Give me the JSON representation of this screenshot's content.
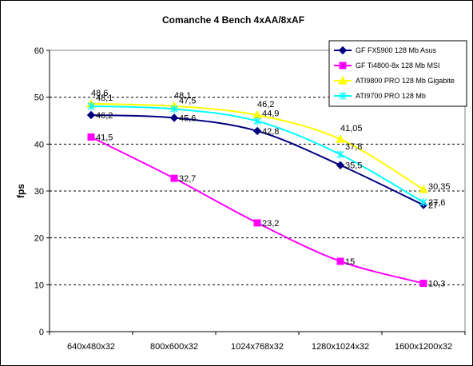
{
  "chart_data": {
    "type": "line",
    "title": "Comanche 4 Bench 4xAA/8xAF",
    "xlabel": "",
    "ylabel": "fps",
    "ylim": [
      0,
      60
    ],
    "yticks": [
      0,
      10,
      20,
      30,
      40,
      50,
      60
    ],
    "grid": "horizontal dashed",
    "legend": "top-right",
    "categories": [
      "640x480x32",
      "800x600x32",
      "1024x768x32",
      "1280x1024x32",
      "1600x1200x32"
    ],
    "series": [
      {
        "name": "GF FX5900 128 Mb Asus",
        "color": "#000080",
        "marker": "diamond",
        "values": [
          46.2,
          45.6,
          42.8,
          35.5,
          27
        ],
        "labels": [
          "46,2",
          "45,6",
          "42,8",
          "35,5",
          "27"
        ]
      },
      {
        "name": "GF Ti4800-8x 128 Mb MSI",
        "color": "#FF00FF",
        "marker": "square",
        "values": [
          41.5,
          32.7,
          23.2,
          15,
          10.3
        ],
        "labels": [
          "41,5",
          "32,7",
          "23,2",
          "15",
          "10,3"
        ]
      },
      {
        "name": "ATI9800 PRO 128 Mb Gigabite",
        "color": "#FFFF00",
        "marker": "triangle",
        "values": [
          48.6,
          48.1,
          46.2,
          41.05,
          30.35
        ],
        "labels": [
          "48,6",
          "48,1",
          "46,2",
          "41,05",
          "30,35"
        ]
      },
      {
        "name": "ATI9700 PRO 128 Mb",
        "color": "#00FFFF",
        "marker": "star",
        "values": [
          48.1,
          47.5,
          44.9,
          37.8,
          27.6
        ],
        "labels": [
          "48,1",
          "47,5",
          "44,9",
          "37,8",
          "27,6"
        ]
      }
    ]
  }
}
